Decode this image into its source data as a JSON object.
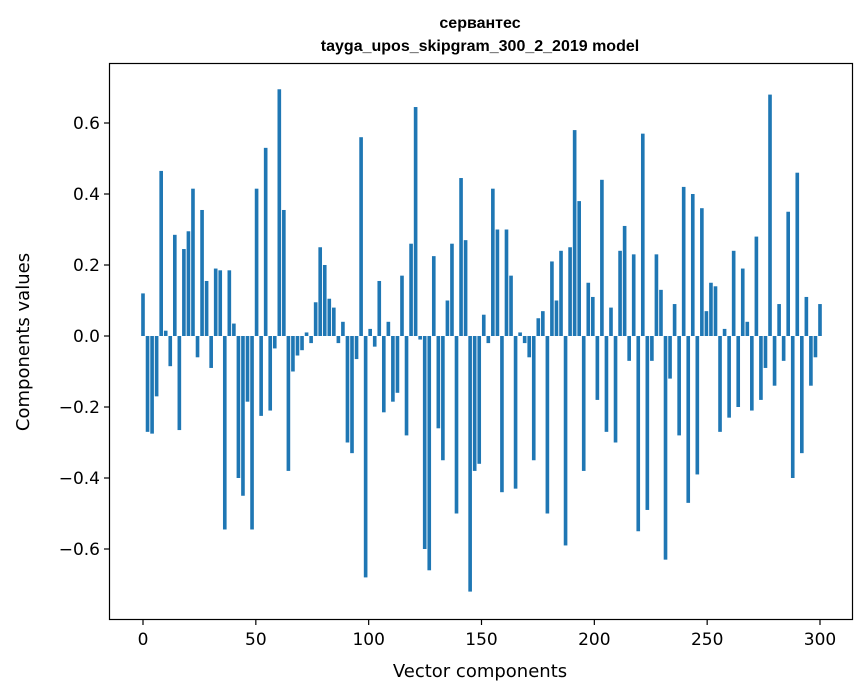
{
  "chart_data": {
    "type": "bar",
    "title_line1": "сервантес",
    "title_line2": "tayga_upos_skipgram_300_2_2019 model",
    "xlabel": "Vector components",
    "ylabel": "Components values",
    "xlim": [
      -15,
      315
    ],
    "ylim": [
      -0.8,
      0.77
    ],
    "xticks": [
      0,
      50,
      100,
      150,
      200,
      250,
      300
    ],
    "xtick_labels": [
      "0",
      "50",
      "100",
      "150",
      "200",
      "250",
      "300"
    ],
    "yticks": [
      -0.6,
      -0.4,
      -0.2,
      0.0,
      0.2,
      0.4,
      0.6
    ],
    "ytick_labels": [
      "−0.6",
      "−0.4",
      "−0.2",
      "0.0",
      "0.2",
      "0.4",
      "0.6"
    ],
    "bar_color": "#1f77b4",
    "values": [
      0.12,
      -0.27,
      -0.275,
      -0.17,
      0.465,
      0.015,
      -0.085,
      0.285,
      -0.265,
      0.245,
      0.295,
      0.415,
      -0.06,
      0.355,
      0.155,
      -0.09,
      0.19,
      0.185,
      -0.545,
      0.185,
      0.035,
      -0.4,
      -0.45,
      -0.185,
      -0.545,
      0.415,
      -0.225,
      0.53,
      -0.21,
      -0.035,
      0.695,
      0.355,
      -0.38,
      -0.1,
      -0.055,
      -0.04,
      0.01,
      -0.02,
      0.095,
      0.25,
      0.2,
      0.105,
      0.08,
      -0.02,
      0.04,
      -0.3,
      -0.33,
      -0.065,
      0.56,
      -0.68,
      0.02,
      -0.03,
      0.155,
      -0.215,
      0.04,
      -0.185,
      -0.16,
      0.17,
      -0.28,
      0.26,
      0.645,
      -0.01,
      -0.6,
      -0.66,
      0.225,
      -0.26,
      -0.35,
      0.1,
      0.26,
      -0.5,
      0.445,
      0.27,
      -0.72,
      -0.38,
      -0.36,
      0.06,
      -0.02,
      0.415,
      0.3,
      -0.44,
      0.3,
      0.17,
      -0.43,
      0.01,
      -0.02,
      -0.06,
      -0.35,
      0.05,
      0.07,
      -0.5,
      0.21,
      0.1,
      0.24,
      -0.59,
      0.25,
      0.58,
      0.38,
      -0.38,
      0.15,
      0.11,
      -0.18,
      0.44,
      -0.27,
      0.08,
      -0.3,
      0.24,
      0.31,
      -0.07,
      0.23,
      -0.55,
      0.57,
      -0.49,
      -0.07,
      0.23,
      0.13,
      -0.63,
      -0.12,
      0.09,
      -0.28,
      0.42,
      -0.47,
      0.4,
      -0.39,
      0.36,
      0.07,
      0.15,
      0.14,
      -0.27,
      0.02,
      -0.23,
      0.24,
      -0.2,
      0.19,
      0.04,
      -0.21,
      0.28,
      -0.18,
      -0.09,
      0.68,
      -0.14,
      0.09,
      -0.07,
      0.35,
      -0.4,
      0.46,
      -0.33,
      0.11,
      -0.14,
      -0.06,
      0.09
    ]
  }
}
